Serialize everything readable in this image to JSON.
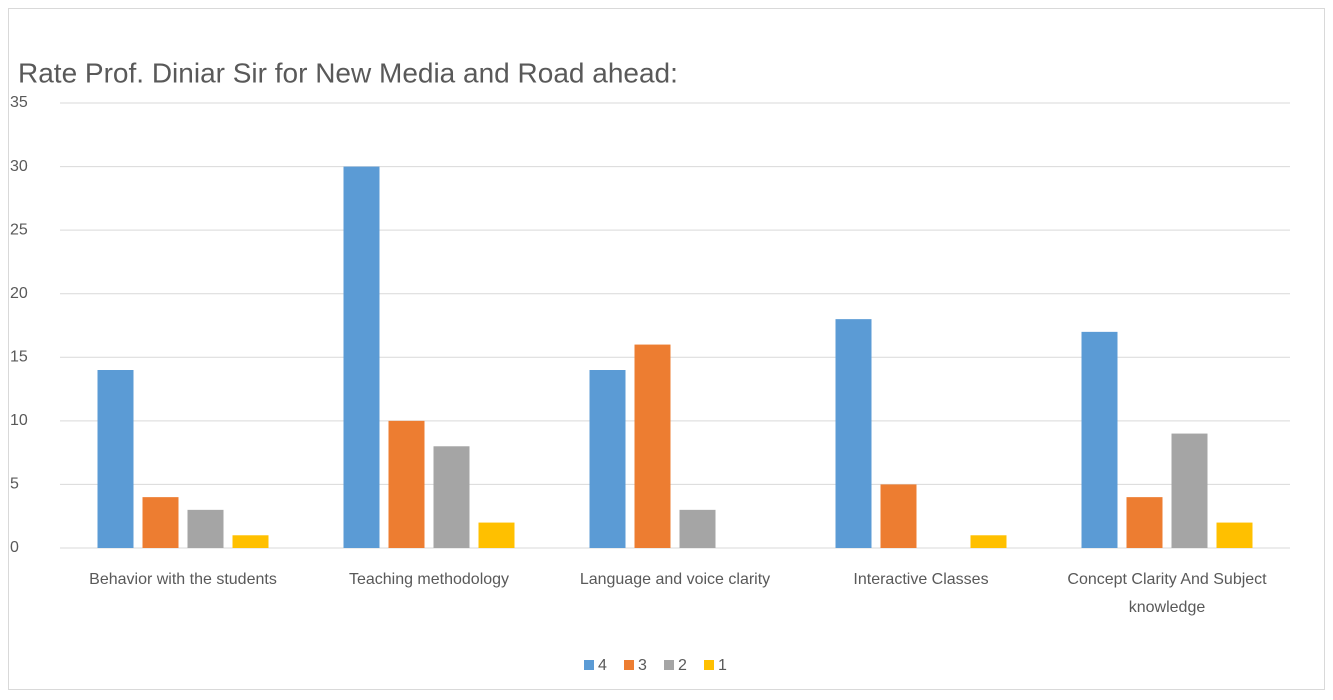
{
  "chart_data": {
    "type": "bar",
    "title": "Rate Prof. Diniar Sir for New Media and Road ahead:",
    "categories": [
      "Behavior with the students",
      "Teaching methodology",
      "Language and voice clarity",
      "Interactive Classes",
      "Concept Clarity And Subject knowledge"
    ],
    "series": [
      {
        "name": "4",
        "color": "#5b9bd5",
        "values": [
          14,
          30,
          14,
          18,
          17
        ]
      },
      {
        "name": "3",
        "color": "#ed7d31",
        "values": [
          4,
          10,
          16,
          5,
          4
        ]
      },
      {
        "name": "2",
        "color": "#a5a5a5",
        "values": [
          3,
          8,
          3,
          null,
          9
        ]
      },
      {
        "name": "1",
        "color": "#ffc000",
        "values": [
          1,
          2,
          null,
          1,
          2
        ]
      }
    ],
    "ylim": [
      0,
      35
    ],
    "yticks": [
      0,
      5,
      10,
      15,
      20,
      25,
      30,
      35
    ],
    "grid": true,
    "legend": "bottom"
  }
}
